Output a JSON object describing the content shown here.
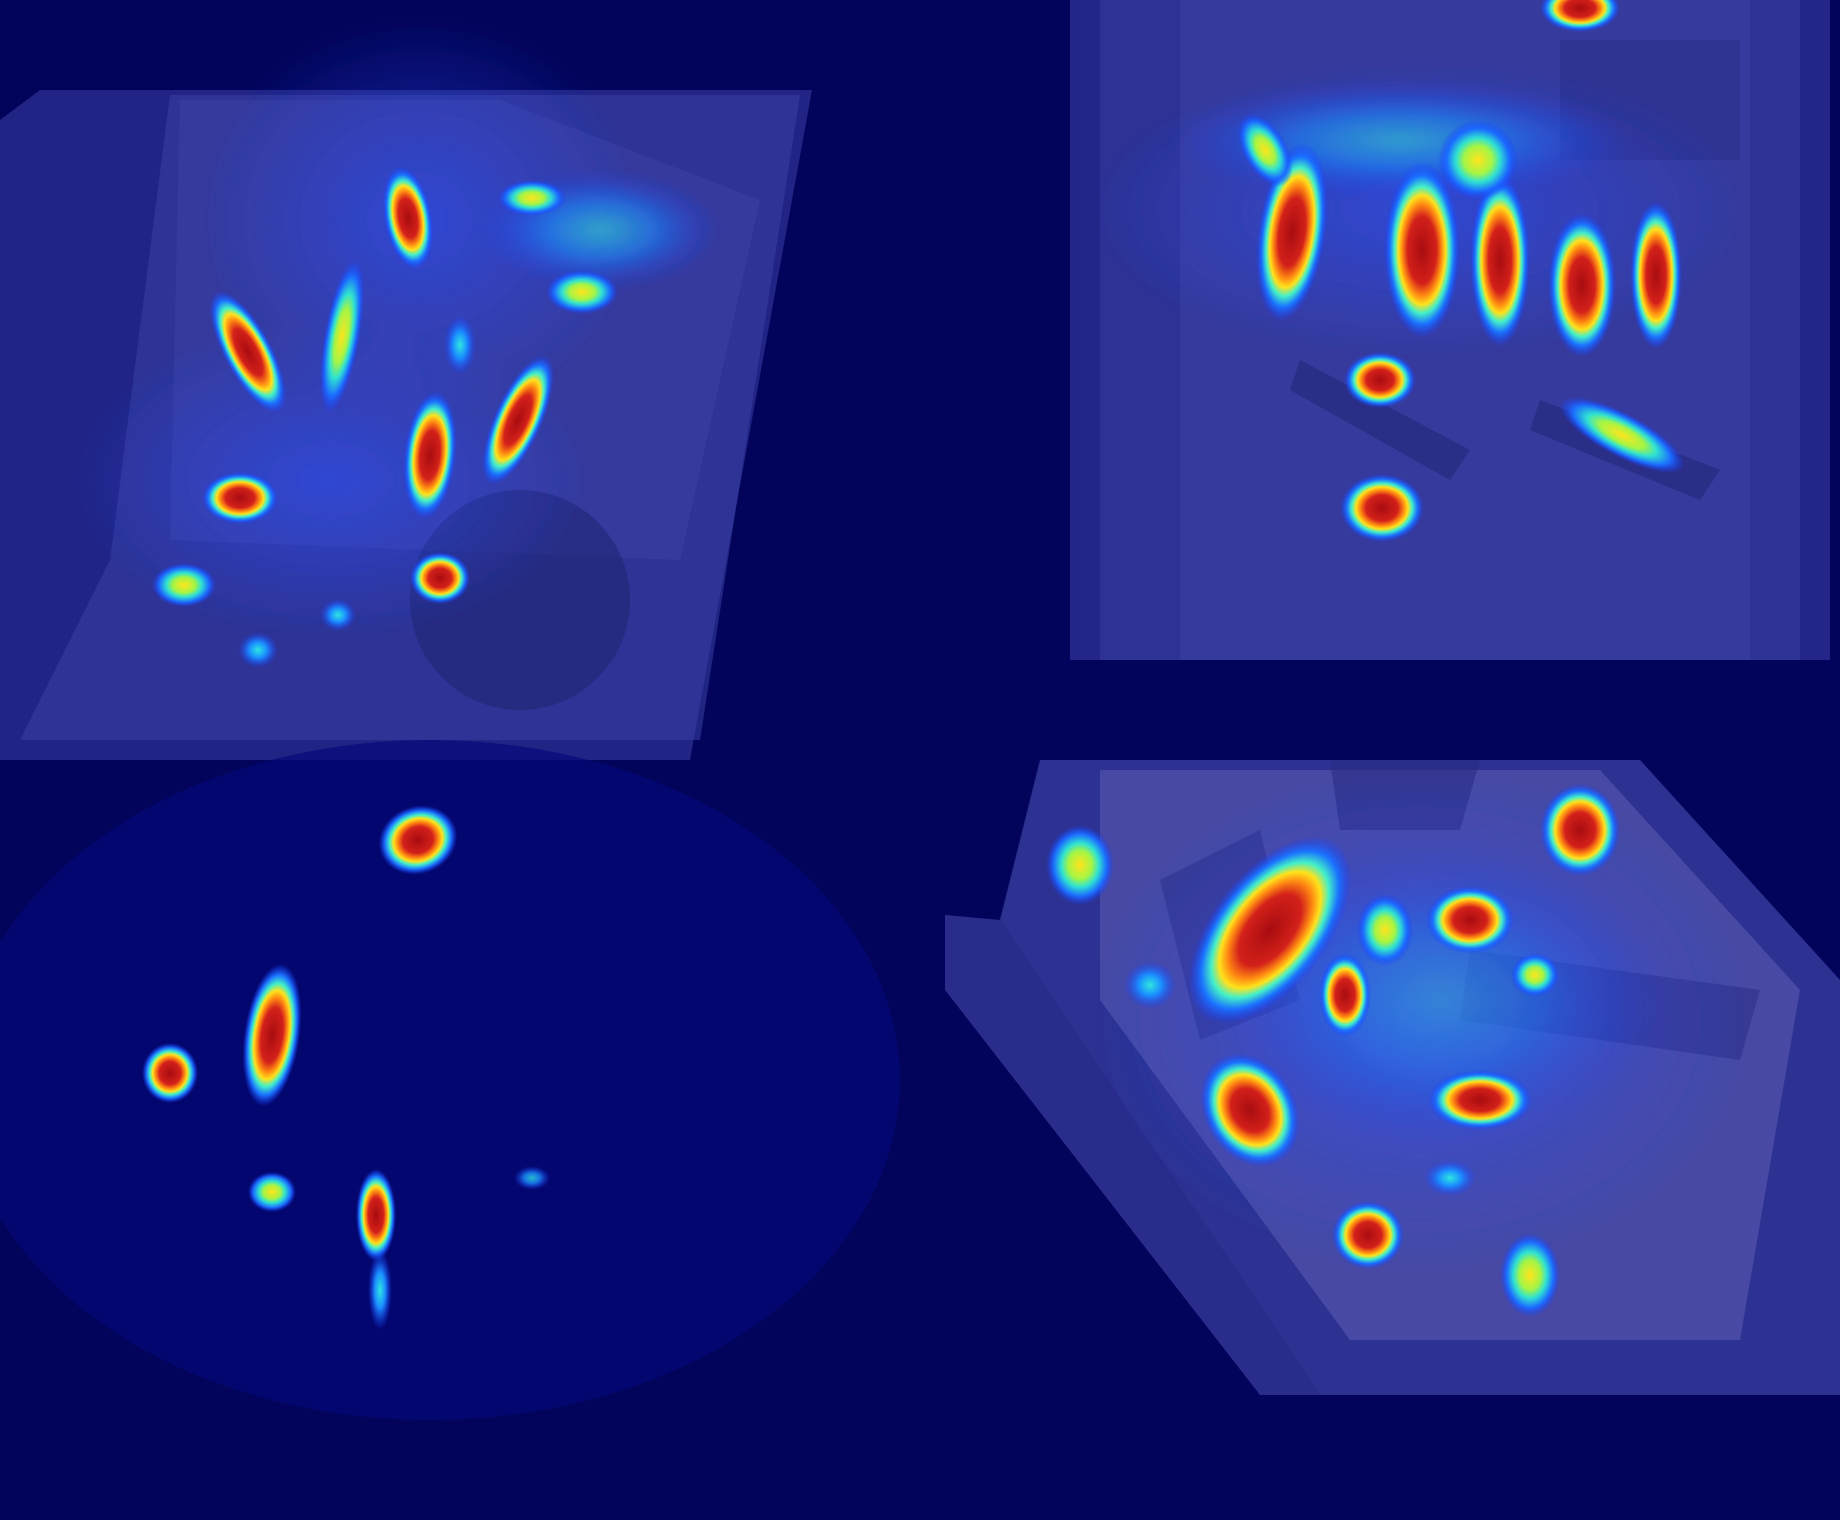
{
  "image": {
    "kind": "heatmap-overlay-grid",
    "colors": {
      "background": "#02045c",
      "panel_tint": "#3a3ea0",
      "panel_edge": "#565bb8",
      "heat_hot": "#c01818",
      "heat_warm": "#ffd21a",
      "heat_mid": "#21e0d0",
      "heat_cool": "#1a6bff"
    },
    "panels": [
      {
        "name": "top-left"
      },
      {
        "name": "top-right"
      },
      {
        "name": "bottom-left"
      },
      {
        "name": "bottom-right"
      }
    ]
  }
}
